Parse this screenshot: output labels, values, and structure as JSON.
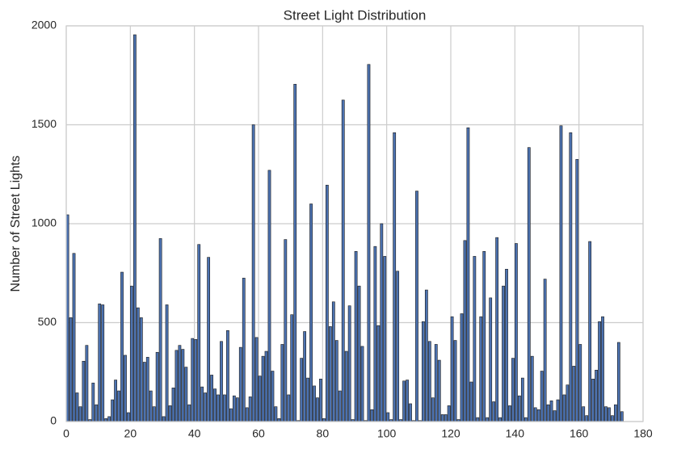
{
  "chart_data": {
    "type": "bar",
    "title": "Street Light Distribution",
    "ylabel": "Number of Street Lights",
    "color": "#4c72b0",
    "grid": true,
    "xlim": [
      0,
      180
    ],
    "ylim": [
      0,
      2000
    ],
    "xticks": [
      0,
      20,
      40,
      60,
      80,
      100,
      120,
      140,
      160,
      180
    ],
    "yticks": [
      0,
      500,
      1000,
      1500,
      2000
    ],
    "x": [
      0,
      1,
      2,
      3,
      4,
      5,
      6,
      7,
      8,
      9,
      10,
      11,
      12,
      13,
      14,
      15,
      16,
      17,
      18,
      19,
      20,
      21,
      22,
      23,
      24,
      25,
      26,
      27,
      28,
      29,
      30,
      31,
      32,
      33,
      34,
      35,
      36,
      37,
      38,
      39,
      40,
      41,
      42,
      43,
      44,
      45,
      46,
      47,
      48,
      49,
      50,
      51,
      52,
      53,
      54,
      55,
      56,
      57,
      58,
      59,
      60,
      61,
      62,
      63,
      64,
      65,
      66,
      67,
      68,
      69,
      70,
      71,
      72,
      73,
      74,
      75,
      76,
      77,
      78,
      79,
      80,
      81,
      82,
      83,
      84,
      85,
      86,
      87,
      88,
      89,
      90,
      91,
      92,
      93,
      94,
      95,
      96,
      97,
      98,
      99,
      100,
      101,
      102,
      103,
      104,
      105,
      106,
      107,
      108,
      109,
      110,
      111,
      112,
      113,
      114,
      115,
      116,
      117,
      118,
      119,
      120,
      121,
      122,
      123,
      124,
      125,
      126,
      127,
      128,
      129,
      130,
      131,
      132,
      133,
      134,
      135,
      136,
      137,
      138,
      139,
      140,
      141,
      142,
      143,
      144,
      145,
      146,
      147,
      148,
      149,
      150,
      151,
      152,
      153,
      154,
      155,
      156,
      157,
      158,
      159,
      160,
      161,
      162,
      163,
      164,
      165,
      166,
      167,
      168,
      169,
      170,
      171,
      172,
      173
    ],
    "values": [
      1045,
      525,
      850,
      145,
      75,
      305,
      385,
      10,
      195,
      85,
      595,
      590,
      15,
      25,
      110,
      210,
      155,
      755,
      335,
      45,
      685,
      1955,
      575,
      525,
      300,
      325,
      155,
      75,
      350,
      925,
      25,
      590,
      80,
      170,
      360,
      385,
      365,
      275,
      85,
      420,
      415,
      895,
      175,
      145,
      830,
      235,
      165,
      135,
      405,
      135,
      460,
      65,
      130,
      120,
      375,
      725,
      70,
      125,
      1500,
      425,
      230,
      330,
      355,
      1270,
      255,
      75,
      15,
      390,
      920,
      135,
      540,
      1705,
      5,
      320,
      455,
      220,
      1100,
      180,
      120,
      215,
      15,
      1195,
      480,
      605,
      410,
      155,
      1625,
      355,
      585,
      10,
      860,
      685,
      380,
      5,
      1805,
      60,
      885,
      485,
      1000,
      835,
      45,
      10,
      1460,
      760,
      10,
      205,
      210,
      90,
      5,
      1165,
      5,
      505,
      665,
      405,
      120,
      390,
      310,
      35,
      35,
      80,
      530,
      410,
      10,
      545,
      915,
      1485,
      200,
      835,
      20,
      530,
      860,
      20,
      625,
      100,
      930,
      20,
      685,
      770,
      80,
      320,
      900,
      130,
      220,
      20,
      1385,
      330,
      70,
      60,
      255,
      720,
      85,
      105,
      55,
      110,
      1495,
      135,
      185,
      1460,
      280,
      1325,
      390,
      75,
      30,
      910,
      215,
      260,
      505,
      530,
      75,
      70,
      30,
      85,
      400,
      50
    ]
  }
}
